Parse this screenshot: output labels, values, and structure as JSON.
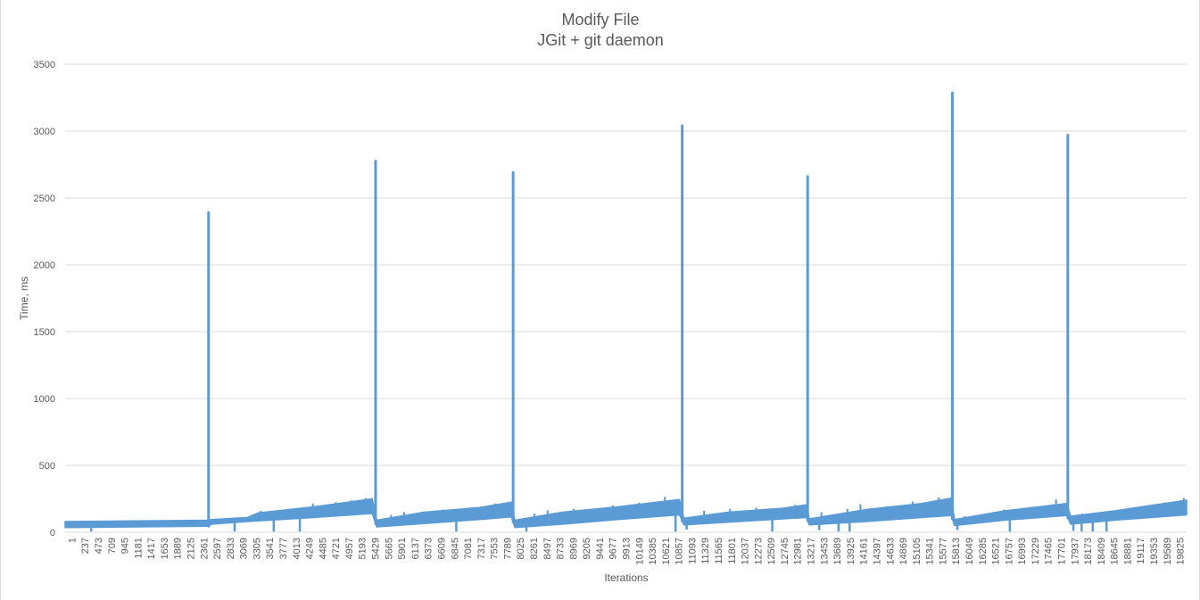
{
  "chart_data": {
    "type": "line",
    "title": "Modify File",
    "subtitle": "JGit + git daemon",
    "xlabel": "Iterations",
    "ylabel": "Time, ms",
    "ylim": [
      0,
      3500
    ],
    "y_ticks": [
      0,
      500,
      1000,
      1500,
      2000,
      2500,
      3000,
      3500
    ],
    "x_range": [
      1,
      20300
    ],
    "x_tick_labels": [
      "1",
      "237",
      "473",
      "709",
      "945",
      "1181",
      "1417",
      "1653",
      "1889",
      "2125",
      "2361",
      "2597",
      "2833",
      "3069",
      "3305",
      "3541",
      "3777",
      "4013",
      "4249",
      "4485",
      "4721",
      "4957",
      "5193",
      "5429",
      "5665",
      "5901",
      "6137",
      "6373",
      "6609",
      "6845",
      "7081",
      "7317",
      "7553",
      "7789",
      "8025",
      "8261",
      "8497",
      "8733",
      "8969",
      "9205",
      "9441",
      "9677",
      "9913",
      "10149",
      "10385",
      "10621",
      "10857",
      "11093",
      "11329",
      "11565",
      "11801",
      "12037",
      "12273",
      "12509",
      "12745",
      "12981",
      "13217",
      "13453",
      "13689",
      "13925",
      "14161",
      "14397",
      "14633",
      "14869",
      "15105",
      "15341",
      "15577",
      "15813",
      "16049",
      "16285",
      "16521",
      "16757",
      "16993",
      "17229",
      "17465",
      "17701",
      "17937",
      "18173",
      "18409",
      "18645",
      "18881",
      "19117",
      "19353",
      "19589",
      "19825"
    ],
    "grid": true,
    "legend": "none",
    "series_color": "#5b9bd5",
    "series": [
      {
        "band_low": [
          [
            1,
            35
          ],
          [
            2597,
            45
          ],
          [
            2650,
            60
          ],
          [
            3300,
            80
          ],
          [
            4500,
            110
          ],
          [
            5560,
            140
          ],
          [
            5640,
            40
          ],
          [
            6500,
            65
          ],
          [
            7500,
            95
          ],
          [
            8080,
            115
          ],
          [
            8140,
            35
          ],
          [
            9000,
            60
          ],
          [
            10000,
            95
          ],
          [
            11120,
            130
          ],
          [
            11200,
            55
          ],
          [
            12000,
            75
          ],
          [
            13000,
            100
          ],
          [
            13420,
            110
          ],
          [
            13470,
            55
          ],
          [
            14500,
            80
          ],
          [
            15500,
            110
          ],
          [
            16040,
            125
          ],
          [
            16100,
            50
          ],
          [
            17000,
            90
          ],
          [
            18130,
            125
          ],
          [
            18200,
            60
          ],
          [
            19000,
            90
          ],
          [
            20300,
            130
          ]
        ],
        "band_high": [
          [
            1,
            80
          ],
          [
            2597,
            90
          ],
          [
            2650,
            95
          ],
          [
            3300,
            110
          ],
          [
            3500,
            145
          ],
          [
            4500,
            190
          ],
          [
            5560,
            250
          ],
          [
            5640,
            90
          ],
          [
            6500,
            150
          ],
          [
            7500,
            185
          ],
          [
            8080,
            225
          ],
          [
            8140,
            90
          ],
          [
            9000,
            150
          ],
          [
            10000,
            190
          ],
          [
            11120,
            245
          ],
          [
            11200,
            105
          ],
          [
            12000,
            150
          ],
          [
            13000,
            180
          ],
          [
            13420,
            205
          ],
          [
            13470,
            100
          ],
          [
            14500,
            170
          ],
          [
            15500,
            215
          ],
          [
            16040,
            255
          ],
          [
            16100,
            95
          ],
          [
            17000,
            160
          ],
          [
            18130,
            215
          ],
          [
            18200,
            120
          ],
          [
            19000,
            160
          ],
          [
            20300,
            240
          ]
        ],
        "spikes": [
          [
            2597,
            2390
          ],
          [
            5620,
            2775
          ],
          [
            8110,
            2690
          ],
          [
            11170,
            3040
          ],
          [
            13440,
            2660
          ],
          [
            16060,
            3285
          ],
          [
            18150,
            2970
          ]
        ],
        "noise_spikes": [
          [
            3541,
            160
          ],
          [
            4485,
            215
          ],
          [
            4900,
            225
          ],
          [
            5190,
            240
          ],
          [
            5440,
            255
          ],
          [
            5901,
            130
          ],
          [
            6137,
            150
          ],
          [
            6845,
            170
          ],
          [
            7317,
            185
          ],
          [
            7789,
            215
          ],
          [
            8025,
            225
          ],
          [
            8497,
            140
          ],
          [
            8733,
            165
          ],
          [
            9205,
            175
          ],
          [
            9913,
            200
          ],
          [
            10385,
            220
          ],
          [
            10857,
            265
          ],
          [
            11565,
            160
          ],
          [
            12037,
            175
          ],
          [
            12509,
            185
          ],
          [
            13217,
            205
          ],
          [
            13689,
            150
          ],
          [
            14161,
            175
          ],
          [
            14397,
            210
          ],
          [
            14869,
            195
          ],
          [
            15341,
            230
          ],
          [
            15813,
            260
          ],
          [
            16285,
            120
          ],
          [
            16993,
            170
          ],
          [
            17465,
            190
          ],
          [
            17937,
            245
          ],
          [
            18409,
            140
          ],
          [
            19117,
            165
          ],
          [
            19589,
            195
          ],
          [
            20250,
            255
          ]
        ],
        "dips": [
          [
            473,
            5
          ],
          [
            3069,
            5
          ],
          [
            3777,
            5
          ],
          [
            4249,
            5
          ],
          [
            7081,
            5
          ],
          [
            8350,
            5
          ],
          [
            11050,
            5
          ],
          [
            11250,
            20
          ],
          [
            12800,
            5
          ],
          [
            13650,
            15
          ],
          [
            14000,
            5
          ],
          [
            14200,
            5
          ],
          [
            16150,
            15
          ],
          [
            17100,
            5
          ],
          [
            18250,
            10
          ],
          [
            18400,
            5
          ],
          [
            18600,
            5
          ],
          [
            18850,
            5
          ]
        ]
      }
    ]
  }
}
